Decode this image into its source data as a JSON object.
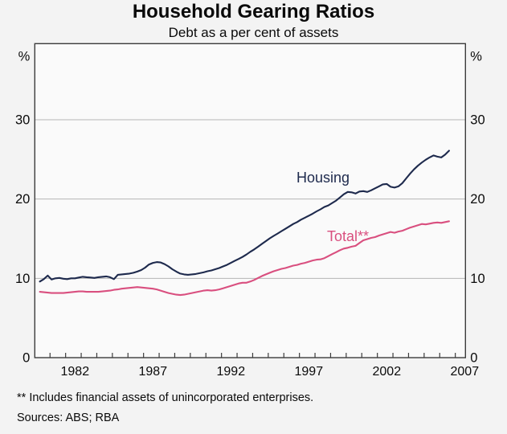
{
  "header": {
    "title": "Household Gearing Ratios",
    "subtitle": "Debt as a per cent of assets"
  },
  "footer": {
    "footnote": "** Includes financial assets of unincorporated enterprises.",
    "sources": "Sources: ABS; RBA"
  },
  "colors": {
    "housing_line": "#1e2a4d",
    "total_line": "#d94f7f",
    "frame": "#3c3c3c",
    "gridline": "#b5b5b5",
    "text": "#0a0a0a",
    "plot_background": "#fafafa"
  },
  "chart_data": {
    "type": "line",
    "title": "Household Gearing Ratios",
    "subtitle": "Debt as a per cent of assets",
    "unit_label": "%",
    "xlabel": "",
    "ylabel": "Debt as a per cent of assets (%)",
    "xlim": [
      1979.4,
      2007.05
    ],
    "ylim": [
      0,
      40
    ],
    "yticks": [
      0,
      10,
      20,
      30
    ],
    "gridlines": [
      10,
      20,
      30
    ],
    "xticks": [
      1982,
      1987,
      1992,
      1997,
      2002,
      2007
    ],
    "x_minor_ticks": {
      "start": 1980.4,
      "end": 2006.4,
      "step": 1
    },
    "legend_position": "inline-labels",
    "grid": true,
    "x_start": 1979.75,
    "x_step": 0.25,
    "x_end": 2006.0,
    "series": [
      {
        "name": "Housing",
        "label": "Housing",
        "color": "#1e2a4d",
        "values": [
          9.6,
          9.9,
          10.35,
          9.85,
          10.0,
          10.05,
          9.95,
          9.9,
          10.0,
          10.0,
          10.1,
          10.2,
          10.15,
          10.1,
          10.05,
          10.15,
          10.2,
          10.25,
          10.15,
          9.9,
          10.45,
          10.5,
          10.55,
          10.6,
          10.7,
          10.85,
          11.05,
          11.35,
          11.75,
          11.95,
          12.05,
          12.0,
          11.8,
          11.5,
          11.15,
          10.85,
          10.6,
          10.5,
          10.45,
          10.5,
          10.55,
          10.65,
          10.75,
          10.9,
          11.0,
          11.15,
          11.3,
          11.5,
          11.7,
          11.95,
          12.2,
          12.45,
          12.7,
          13.0,
          13.35,
          13.65,
          14.0,
          14.35,
          14.7,
          15.05,
          15.35,
          15.65,
          15.95,
          16.25,
          16.55,
          16.85,
          17.1,
          17.4,
          17.65,
          17.9,
          18.15,
          18.45,
          18.7,
          19.0,
          19.2,
          19.5,
          19.8,
          20.2,
          20.6,
          20.9,
          20.85,
          20.7,
          20.95,
          21.0,
          20.9,
          21.1,
          21.35,
          21.6,
          21.85,
          21.9,
          21.55,
          21.45,
          21.6,
          22.0,
          22.6,
          23.2,
          23.75,
          24.2,
          24.6,
          24.95,
          25.25,
          25.5,
          25.35,
          25.25,
          25.6,
          26.1
        ]
      },
      {
        "name": "Total**",
        "label": "Total**",
        "color": "#d94f7f",
        "values": [
          8.3,
          8.25,
          8.2,
          8.15,
          8.15,
          8.15,
          8.15,
          8.2,
          8.25,
          8.3,
          8.35,
          8.35,
          8.3,
          8.3,
          8.3,
          8.3,
          8.35,
          8.4,
          8.45,
          8.55,
          8.6,
          8.7,
          8.75,
          8.8,
          8.85,
          8.9,
          8.85,
          8.8,
          8.75,
          8.7,
          8.6,
          8.45,
          8.3,
          8.15,
          8.05,
          7.95,
          7.9,
          7.95,
          8.05,
          8.15,
          8.25,
          8.35,
          8.45,
          8.5,
          8.45,
          8.5,
          8.6,
          8.75,
          8.9,
          9.05,
          9.2,
          9.35,
          9.45,
          9.45,
          9.6,
          9.8,
          10.05,
          10.3,
          10.5,
          10.7,
          10.9,
          11.05,
          11.2,
          11.3,
          11.45,
          11.6,
          11.7,
          11.85,
          11.95,
          12.1,
          12.25,
          12.35,
          12.4,
          12.55,
          12.8,
          13.05,
          13.3,
          13.55,
          13.75,
          13.85,
          14.0,
          14.1,
          14.45,
          14.8,
          14.95,
          15.1,
          15.2,
          15.4,
          15.55,
          15.7,
          15.85,
          15.75,
          15.9,
          16.0,
          16.2,
          16.4,
          16.55,
          16.7,
          16.85,
          16.8,
          16.9,
          17.0,
          17.05,
          17.0,
          17.1,
          17.2
        ]
      }
    ]
  }
}
